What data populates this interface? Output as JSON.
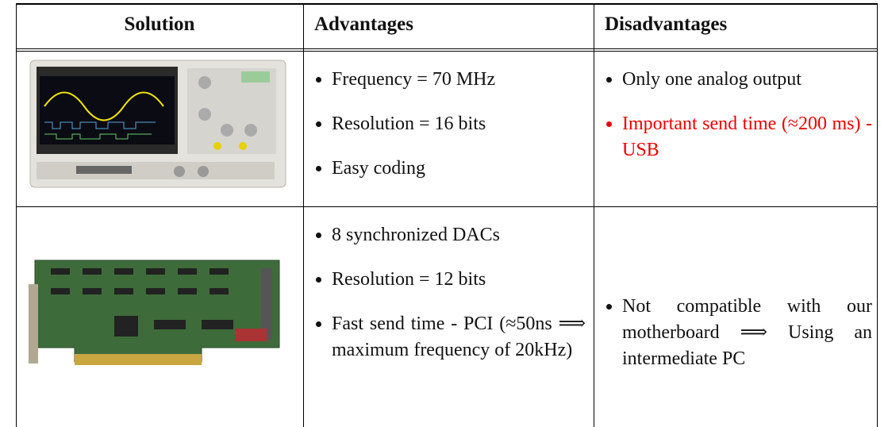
{
  "table": {
    "header": [
      "Solution",
      "Advantages",
      "Disadvantages"
    ],
    "rows": [
      {
        "advantages": [
          "Frequency = 70 MHz",
          "Resolution = 16 bits",
          "Easy coding"
        ],
        "disadvantages": [
          "Only one analog output",
          "Important send time (≈200 ms) - USB"
        ]
      },
      {
        "advantages": [
          "8 synchronized DACs",
          "Resolution = 12 bits",
          "Fast send time - PCI (≈50ns ⟹ maximum frequency of 20kHz)"
        ],
        "disadvantages": [
          "Not compatible with our motherboard ⟹ Using an intermediate PC"
        ]
      }
    ]
  }
}
